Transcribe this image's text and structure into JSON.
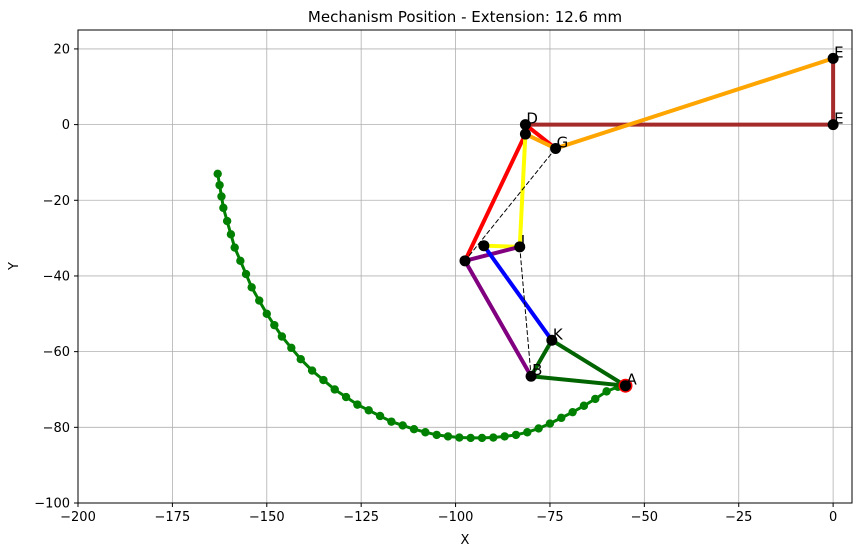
{
  "chart_data": {
    "type": "scatter",
    "title": "Mechanism Position - Extension: 12.6 mm",
    "xlabel": "X",
    "ylabel": "Y",
    "xlim": [
      -200,
      5
    ],
    "ylim": [
      -100,
      25
    ],
    "xticks": [
      -200,
      -175,
      -150,
      -125,
      -100,
      -75,
      -50,
      -25,
      0
    ],
    "yticks": [
      -100,
      -80,
      -60,
      -40,
      -20,
      0,
      20
    ],
    "xtick_labels": [
      "−200",
      "−175",
      "−150",
      "−125",
      "−100",
      "−75",
      "−50",
      "−25",
      "0"
    ],
    "ytick_labels": [
      "−100",
      "−80",
      "−60",
      "−40",
      "−20",
      "0",
      "20"
    ],
    "grid": true,
    "trace": {
      "color": "#008000",
      "x": [
        -163,
        -162.5,
        -162,
        -161.5,
        -160.5,
        -159.5,
        -158.5,
        -157,
        -155.5,
        -154,
        -152,
        -150,
        -148,
        -146,
        -143.5,
        -141,
        -138,
        -135,
        -132,
        -129,
        -126,
        -123,
        -120,
        -117,
        -114,
        -111,
        -108,
        -105,
        -102,
        -99,
        -96,
        -93,
        -90,
        -87,
        -84,
        -81,
        -78,
        -75,
        -72,
        -69,
        -66,
        -63,
        -60,
        -57,
        -55
      ],
      "y": [
        -13,
        -16,
        -19,
        -22,
        -25.5,
        -29,
        -32.5,
        -36,
        -39.5,
        -43,
        -46.5,
        -50,
        -53,
        -56,
        -59,
        -62,
        -65,
        -67.5,
        -70,
        -72,
        -74,
        -75.5,
        -77,
        -78.5,
        -79.5,
        -80.5,
        -81.3,
        -82,
        -82.4,
        -82.7,
        -82.8,
        -82.8,
        -82.7,
        -82.4,
        -82,
        -81.3,
        -80.3,
        -79,
        -77.5,
        -76,
        -74.3,
        -72.5,
        -70.5,
        -69.3,
        -68.5
      ]
    },
    "points": [
      {
        "name": "A",
        "x": -55,
        "y": -69,
        "label": "A"
      },
      {
        "name": "B",
        "x": -80,
        "y": -66.5,
        "label": "B"
      },
      {
        "name": "C",
        "x": -97.5,
        "y": -36,
        "label": ""
      },
      {
        "name": "D",
        "x": -81.5,
        "y": 0,
        "label": "D"
      },
      {
        "name": "D2",
        "x": -81.5,
        "y": -2.5,
        "label": ""
      },
      {
        "name": "E",
        "x": 0,
        "y": 0,
        "label": "E"
      },
      {
        "name": "F",
        "x": 0,
        "y": 17.5,
        "label": "E"
      },
      {
        "name": "G",
        "x": -73.5,
        "y": -6.3,
        "label": "G"
      },
      {
        "name": "I",
        "x": -92.5,
        "y": -32,
        "label": ""
      },
      {
        "name": "J",
        "x": -83,
        "y": -32.3,
        "label": "J"
      },
      {
        "name": "K",
        "x": -74.5,
        "y": -57,
        "label": "K"
      }
    ],
    "links": [
      {
        "from": "D",
        "to": "E",
        "color": "#a52a2a",
        "dashed": false
      },
      {
        "from": "E",
        "to": "F",
        "color": "#a52a2a",
        "dashed": false
      },
      {
        "from": "G",
        "to": "F",
        "color": "#ffa500",
        "dashed": false
      },
      {
        "from": "D",
        "to": "G",
        "color": "#ff0000",
        "dashed": false
      },
      {
        "from": "D2",
        "to": "G",
        "color": "#ffa500",
        "dashed": false
      },
      {
        "from": "D2",
        "to": "C",
        "color": "#ff0000",
        "dashed": false
      },
      {
        "from": "D2",
        "to": "J",
        "color": "#ffff00",
        "dashed": false
      },
      {
        "from": "I",
        "to": "J",
        "color": "#ffff00",
        "dashed": false
      },
      {
        "from": "C",
        "to": "J",
        "color": "#800080",
        "dashed": false
      },
      {
        "from": "C",
        "to": "B",
        "color": "#800080",
        "dashed": false
      },
      {
        "from": "I",
        "to": "K",
        "color": "#0000ff",
        "dashed": false
      },
      {
        "from": "K",
        "to": "A",
        "color": "#006400",
        "dashed": false
      },
      {
        "from": "K",
        "to": "B",
        "color": "#006400",
        "dashed": false
      },
      {
        "from": "B",
        "to": "A",
        "color": "#006400",
        "dashed": false
      },
      {
        "from": "C",
        "to": "G",
        "color": "#000000",
        "dashed": true
      },
      {
        "from": "J",
        "to": "B",
        "color": "#000000",
        "dashed": true
      }
    ],
    "highlight_point": {
      "name": "A",
      "color": "#ff0000"
    }
  }
}
